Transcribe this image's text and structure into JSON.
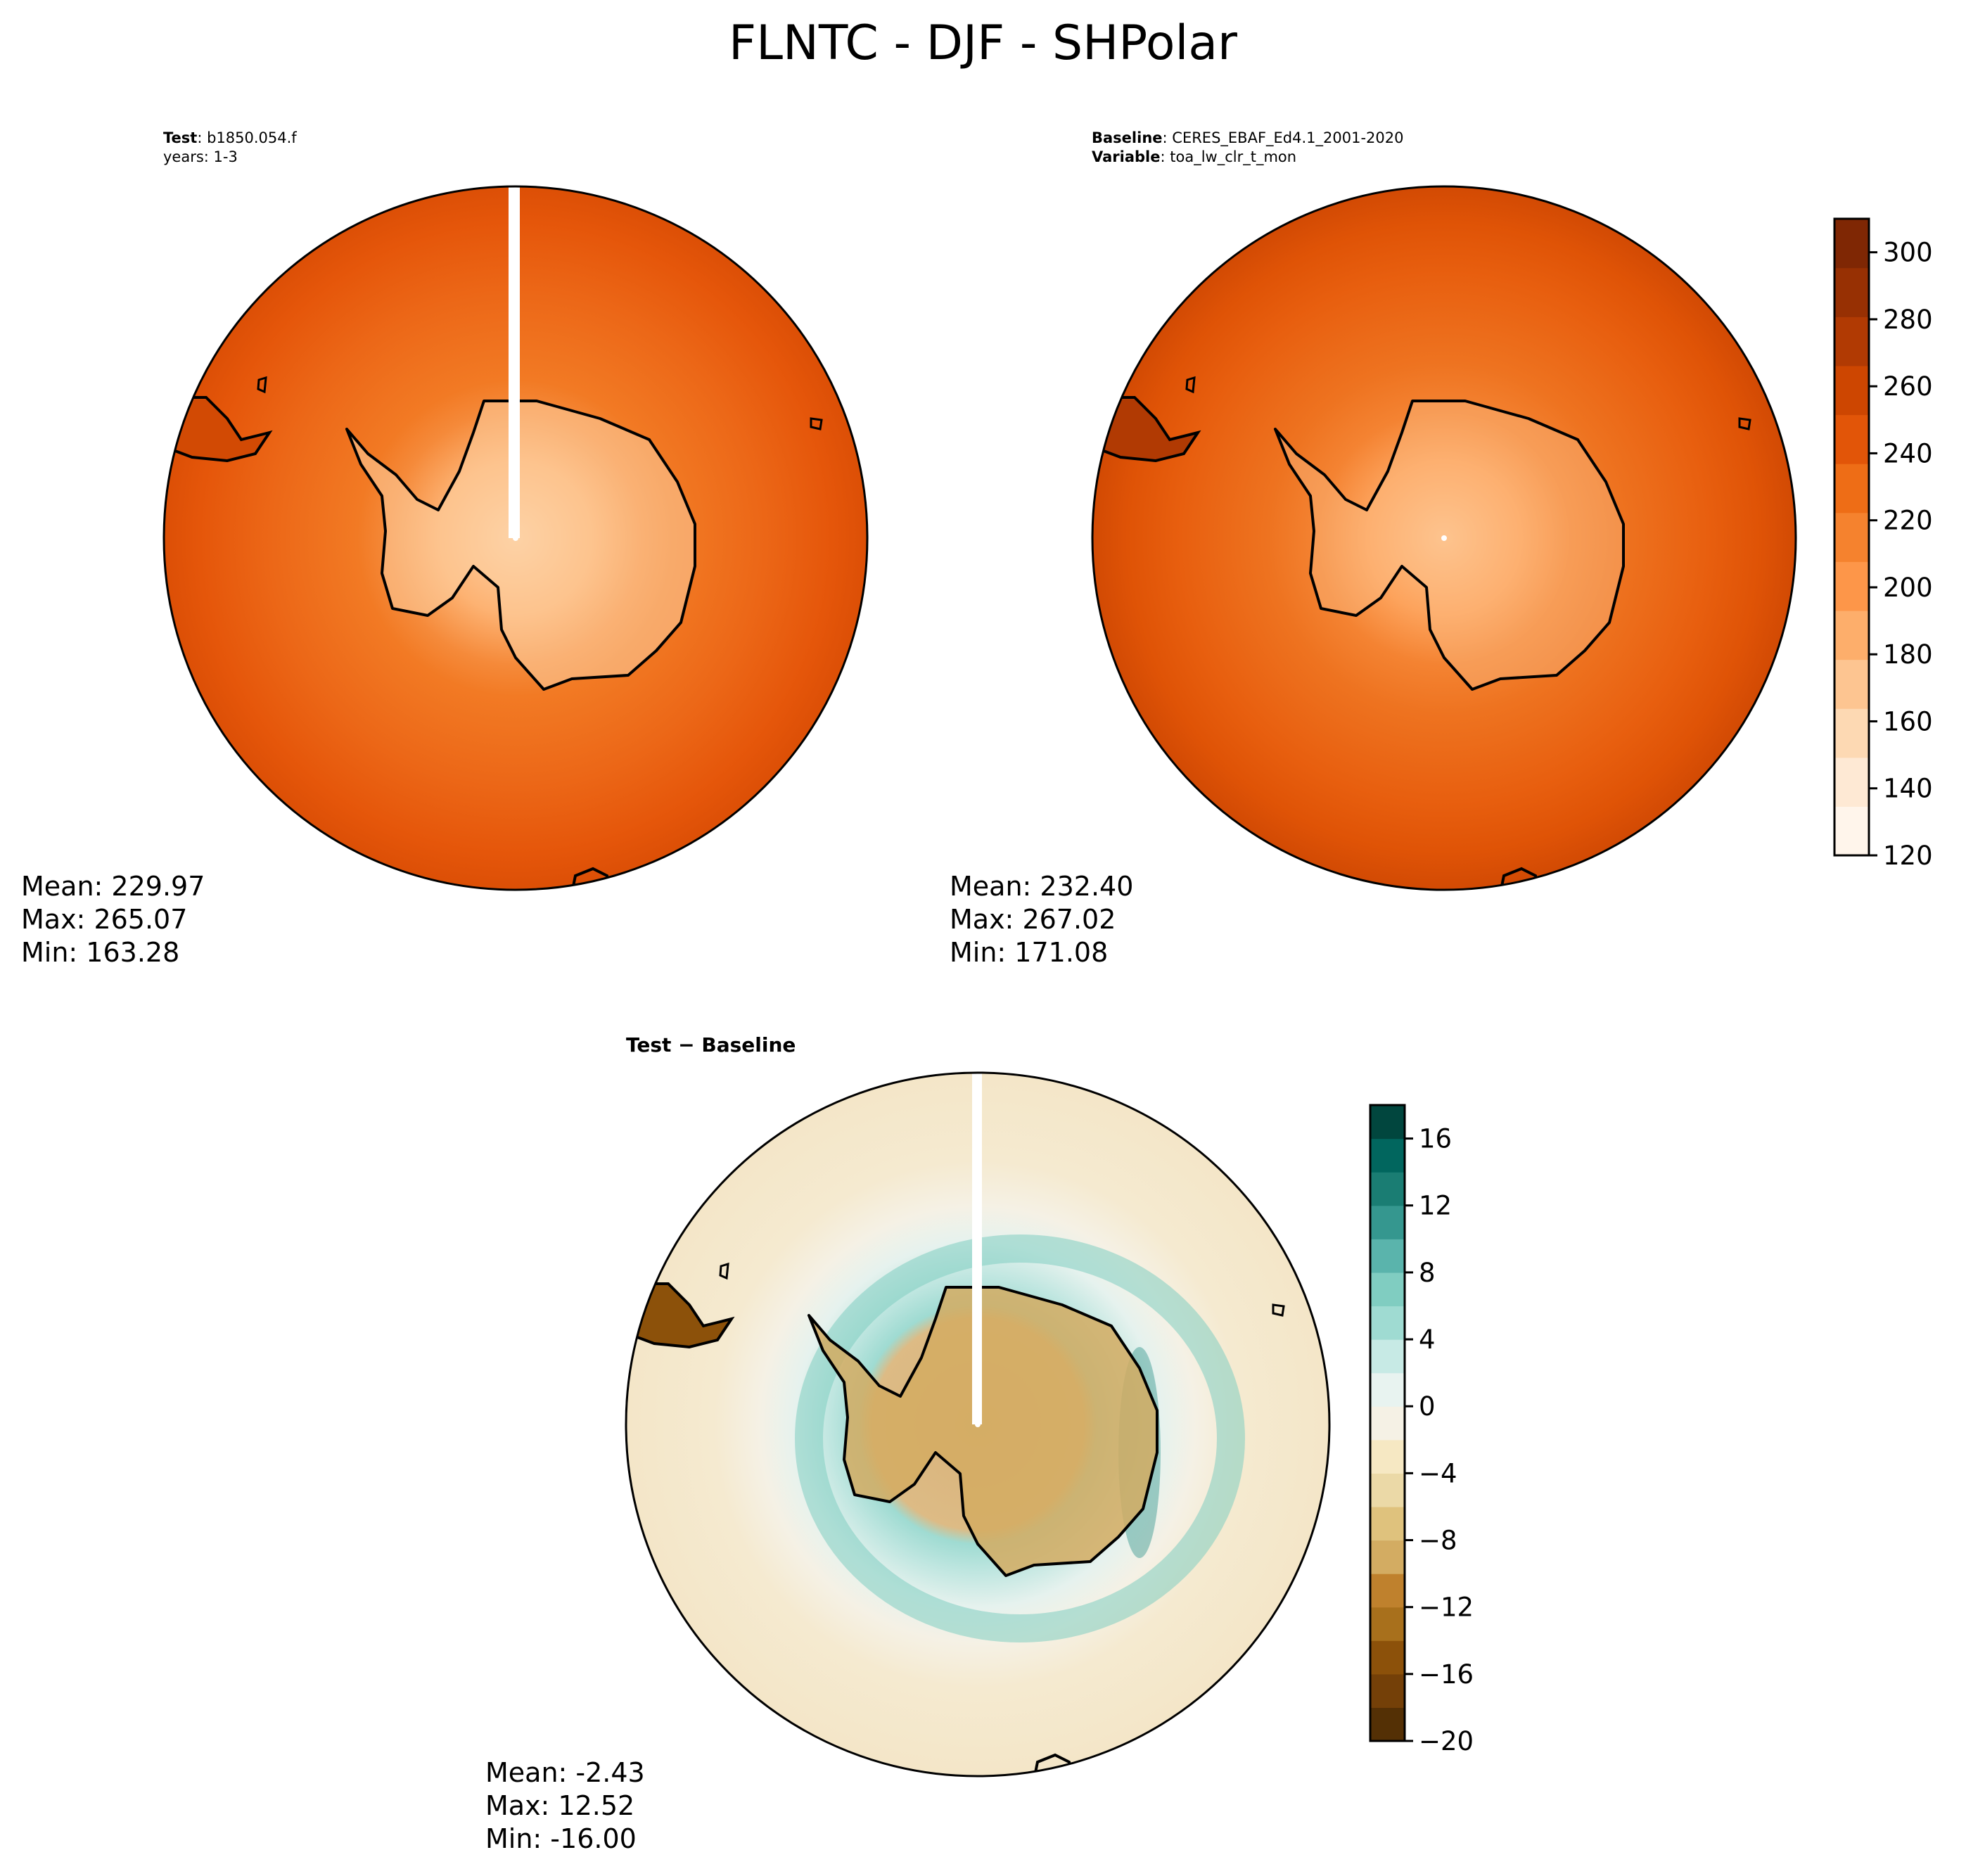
{
  "title": "FLNTC - DJF - SHPolar",
  "panels": {
    "test": {
      "line1_key": "Test",
      "line1_value": "b1850.054.f",
      "line2": "years: 1-3",
      "stats": {
        "mean": "Mean: 229.97",
        "max": "Max: 265.07",
        "min": "Min: 163.28"
      }
    },
    "baseline": {
      "line1_key": "Baseline",
      "line1_value": "CERES_EBAF_Ed4.1_2001-2020",
      "line2_key": "Variable",
      "line2_value": "toa_lw_clr_t_mon",
      "stats": {
        "mean": "Mean: 232.40",
        "max": "Max: 267.02",
        "min": "Min: 171.08"
      }
    },
    "diff": {
      "label": "Test − Baseline",
      "stats": {
        "mean": "Mean: -2.43",
        "max": "Max: 12.52",
        "min": "Min: -16.00"
      }
    }
  },
  "colorbars": {
    "main": {
      "ticks": [
        "120",
        "140",
        "160",
        "180",
        "200",
        "220",
        "240",
        "260",
        "280",
        "300"
      ],
      "range": [
        120,
        310
      ],
      "colors": [
        "#fff5eb",
        "#fee9d4",
        "#fdd9b3",
        "#fdc591",
        "#fdae6b",
        "#fd9649",
        "#f5822e",
        "#ee6d16",
        "#e25508",
        "#cd4601",
        "#b13a03",
        "#973003",
        "#7f2704"
      ]
    },
    "diff": {
      "ticks": [
        "−20",
        "−16",
        "−12",
        "−8",
        "−4",
        "0",
        "4",
        "8",
        "12",
        "16"
      ],
      "range": [
        -20,
        18
      ],
      "colors": [
        "#543005",
        "#744008",
        "#8c510a",
        "#a8701c",
        "#bf812d",
        "#d3ac62",
        "#dfc27d",
        "#ebd9a7",
        "#f6e8c3",
        "#f5f1e5",
        "#e8f3f0",
        "#c7eae5",
        "#9fdbd2",
        "#80cdc1",
        "#5ab4ac",
        "#35978f",
        "#1a7d73",
        "#01665e",
        "#01463e"
      ]
    }
  },
  "chart_data": [
    {
      "type": "heatmap",
      "projection": "South Polar Stereographic",
      "title": "Test: b1850.054.f, years: 1-3",
      "colormap": "Oranges",
      "vmin": 120,
      "vmax": 310,
      "stats": {
        "mean": 229.97,
        "max": 265.07,
        "min": 163.28
      }
    },
    {
      "type": "heatmap",
      "projection": "South Polar Stereographic",
      "title": "Baseline: CERES_EBAF_Ed4.1_2001-2020, Variable: toa_lw_clr_t_mon",
      "colormap": "Oranges",
      "vmin": 120,
      "vmax": 310,
      "stats": {
        "mean": 232.4,
        "max": 267.02,
        "min": 171.08
      }
    },
    {
      "type": "heatmap",
      "projection": "South Polar Stereographic",
      "title": "Test − Baseline",
      "colormap": "BrBG",
      "vmin": -20,
      "vmax": 18,
      "stats": {
        "mean": -2.43,
        "max": 12.52,
        "min": -16.0
      }
    }
  ]
}
